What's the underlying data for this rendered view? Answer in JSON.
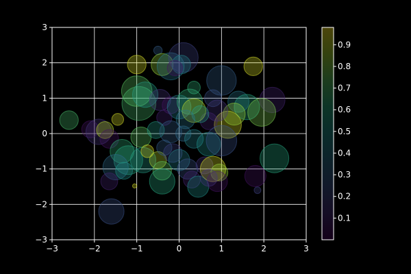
{
  "chart_data": {
    "type": "scatter",
    "title": "",
    "xlabel": "",
    "ylabel": "",
    "xlim": [
      -3,
      3
    ],
    "ylim": [
      -3,
      3
    ],
    "xticks": [
      "−3",
      "−2",
      "−1",
      "0",
      "1",
      "2",
      "3"
    ],
    "yticks": [
      "−3",
      "−2",
      "−1",
      "0",
      "1",
      "2",
      "3"
    ],
    "grid": true,
    "background": "#000000",
    "axis_color": "#ffffff",
    "colormap": "viridis",
    "point_alpha": 0.3,
    "colorbar": {
      "placement": "right",
      "range": [
        0,
        0.98
      ],
      "ticks": [
        "0.1",
        "0.2",
        "0.3",
        "0.4",
        "0.5",
        "0.6",
        "0.7",
        "0.8",
        "0.9"
      ],
      "tick_values": [
        0.1,
        0.2,
        0.3,
        0.4,
        0.5,
        0.6,
        0.7,
        0.8,
        0.9
      ]
    },
    "points": [
      {
        "x": -1.0,
        "y": 1.95,
        "r": 0.22,
        "c": 0.95
      },
      {
        "x": -0.5,
        "y": 2.35,
        "r": 0.1,
        "c": 0.3
      },
      {
        "x": -0.4,
        "y": 1.95,
        "r": 0.26,
        "c": 0.85
      },
      {
        "x": -0.2,
        "y": 1.9,
        "r": 0.32,
        "c": 0.4
      },
      {
        "x": 0.1,
        "y": 2.15,
        "r": 0.35,
        "c": 0.2
      },
      {
        "x": 0.05,
        "y": 1.95,
        "r": 0.22,
        "c": 0.45
      },
      {
        "x": -0.1,
        "y": 1.85,
        "r": 0.18,
        "c": 0.05
      },
      {
        "x": 0.35,
        "y": 1.3,
        "r": 0.15,
        "c": 0.65
      },
      {
        "x": 1.0,
        "y": 1.5,
        "r": 0.35,
        "c": 0.3
      },
      {
        "x": 1.75,
        "y": 1.9,
        "r": 0.22,
        "c": 0.95
      },
      {
        "x": 2.2,
        "y": 0.95,
        "r": 0.3,
        "c": 0.1
      },
      {
        "x": 1.4,
        "y": 0.9,
        "r": 0.25,
        "c": 0.4
      },
      {
        "x": 1.6,
        "y": 0.75,
        "r": 0.3,
        "c": 0.6
      },
      {
        "x": 1.95,
        "y": 0.6,
        "r": 0.33,
        "c": 0.8
      },
      {
        "x": 1.15,
        "y": 0.25,
        "r": 0.32,
        "c": 0.95
      },
      {
        "x": 1.3,
        "y": 0.55,
        "r": 0.26,
        "c": 0.85
      },
      {
        "x": 0.8,
        "y": 1.0,
        "r": 0.2,
        "c": 0.25
      },
      {
        "x": 0.9,
        "y": 0.65,
        "r": 0.25,
        "c": 0.15
      },
      {
        "x": 0.7,
        "y": 0.35,
        "r": 0.2,
        "c": 0.1
      },
      {
        "x": -1.0,
        "y": 1.2,
        "r": 0.36,
        "c": 0.75
      },
      {
        "x": -0.95,
        "y": 0.85,
        "r": 0.4,
        "c": 0.7
      },
      {
        "x": -0.8,
        "y": 1.1,
        "r": 0.3,
        "c": 0.55
      },
      {
        "x": -0.45,
        "y": 0.95,
        "r": 0.25,
        "c": 0.15
      },
      {
        "x": -0.2,
        "y": 0.8,
        "r": 0.2,
        "c": 0.05
      },
      {
        "x": 0.0,
        "y": 0.75,
        "r": 0.28,
        "c": 0.45
      },
      {
        "x": 0.25,
        "y": 0.9,
        "r": 0.3,
        "c": 0.65
      },
      {
        "x": 0.35,
        "y": 0.65,
        "r": 0.28,
        "c": 0.9
      },
      {
        "x": 0.5,
        "y": 0.55,
        "r": 0.2,
        "c": 0.55
      },
      {
        "x": 0.15,
        "y": 0.4,
        "r": 0.22,
        "c": 0.4
      },
      {
        "x": -0.35,
        "y": 0.45,
        "r": 0.18,
        "c": 0.1
      },
      {
        "x": -2.6,
        "y": 0.38,
        "r": 0.22,
        "c": 0.7
      },
      {
        "x": -2.1,
        "y": 0.12,
        "r": 0.2,
        "c": 0.05
      },
      {
        "x": -1.9,
        "y": 0.05,
        "r": 0.3,
        "c": 0.15
      },
      {
        "x": -1.75,
        "y": 0.1,
        "r": 0.2,
        "c": 0.9
      },
      {
        "x": -1.45,
        "y": 0.4,
        "r": 0.14,
        "c": 0.95
      },
      {
        "x": -1.65,
        "y": -0.15,
        "r": 0.22,
        "c": 0.05
      },
      {
        "x": -0.9,
        "y": -0.1,
        "r": 0.24,
        "c": 0.75
      },
      {
        "x": -0.55,
        "y": 0.1,
        "r": 0.2,
        "c": 0.55
      },
      {
        "x": -0.2,
        "y": 0.05,
        "r": 0.26,
        "c": 0.3
      },
      {
        "x": 0.1,
        "y": 0.0,
        "r": 0.18,
        "c": 0.35
      },
      {
        "x": 0.35,
        "y": -0.15,
        "r": 0.22,
        "c": 0.45
      },
      {
        "x": 0.7,
        "y": -0.3,
        "r": 0.28,
        "c": 0.5
      },
      {
        "x": 1.0,
        "y": -0.2,
        "r": 0.36,
        "c": 0.25
      },
      {
        "x": -1.35,
        "y": -0.5,
        "r": 0.28,
        "c": 0.65
      },
      {
        "x": -1.2,
        "y": -0.75,
        "r": 0.34,
        "c": 0.6
      },
      {
        "x": -1.5,
        "y": -0.95,
        "r": 0.3,
        "c": 0.35
      },
      {
        "x": -1.65,
        "y": -1.35,
        "r": 0.2,
        "c": 0.1
      },
      {
        "x": -1.3,
        "y": -1.05,
        "r": 0.2,
        "c": 0.5
      },
      {
        "x": -0.85,
        "y": -0.75,
        "r": 0.3,
        "c": 0.55
      },
      {
        "x": -0.75,
        "y": -0.5,
        "r": 0.15,
        "c": 0.95
      },
      {
        "x": -0.5,
        "y": -0.75,
        "r": 0.2,
        "c": 0.9
      },
      {
        "x": -0.35,
        "y": -0.4,
        "r": 0.18,
        "c": 0.3
      },
      {
        "x": -0.15,
        "y": -0.55,
        "r": 0.22,
        "c": 0.2
      },
      {
        "x": -0.4,
        "y": -1.05,
        "r": 0.22,
        "c": 0.75
      },
      {
        "x": -0.4,
        "y": -1.35,
        "r": 0.3,
        "c": 0.6
      },
      {
        "x": 0.0,
        "y": -0.75,
        "r": 0.25,
        "c": 0.45
      },
      {
        "x": 0.2,
        "y": -1.0,
        "r": 0.24,
        "c": 0.25
      },
      {
        "x": 0.3,
        "y": -1.3,
        "r": 0.2,
        "c": 0.1
      },
      {
        "x": 0.45,
        "y": -1.5,
        "r": 0.25,
        "c": 0.5
      },
      {
        "x": 0.6,
        "y": -0.9,
        "r": 0.2,
        "c": 0.15
      },
      {
        "x": 0.8,
        "y": -1.0,
        "r": 0.3,
        "c": 0.95
      },
      {
        "x": 0.95,
        "y": -1.1,
        "r": 0.2,
        "c": 0.85
      },
      {
        "x": 0.9,
        "y": -1.35,
        "r": 0.24,
        "c": 0.05
      },
      {
        "x": 0.7,
        "y": -1.25,
        "r": 0.2,
        "c": 0.15
      },
      {
        "x": 1.8,
        "y": -1.2,
        "r": 0.25,
        "c": 0.05
      },
      {
        "x": 1.85,
        "y": -1.6,
        "r": 0.08,
        "c": 0.2
      },
      {
        "x": 2.25,
        "y": -0.7,
        "r": 0.34,
        "c": 0.6
      },
      {
        "x": -1.6,
        "y": -2.2,
        "r": 0.3,
        "c": 0.25
      },
      {
        "x": -1.05,
        "y": -1.48,
        "r": 0.05,
        "c": 0.95
      }
    ]
  }
}
